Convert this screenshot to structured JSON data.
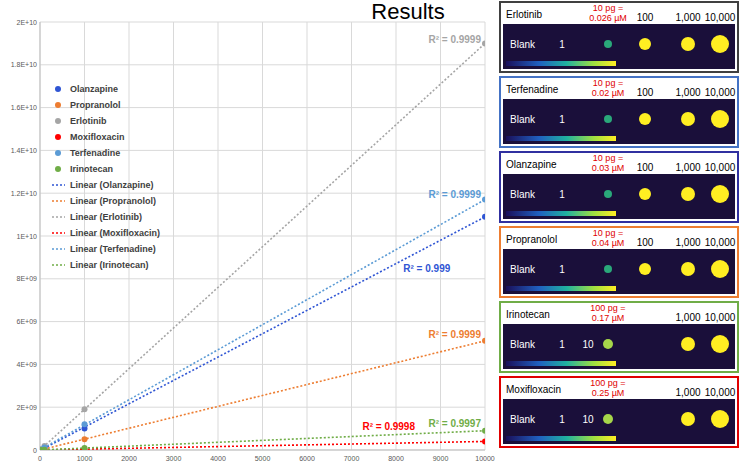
{
  "title": "Results",
  "chart_data": {
    "type": "scatter",
    "x": [
      1,
      10,
      100,
      1000,
      10000
    ],
    "xlim": [
      0,
      10000
    ],
    "xticks": [
      0,
      1000,
      2000,
      3000,
      4000,
      5000,
      6000,
      7000,
      8000,
      9000,
      10000
    ],
    "ylim": [
      0,
      20000000000
    ],
    "yticks": [
      0,
      {
        "value": 2000000000,
        "label": "2E+09"
      },
      {
        "value": 4000000000,
        "label": "4E+09"
      },
      {
        "value": 6000000000,
        "label": "6E+09"
      },
      {
        "value": 8000000000,
        "label": "8E+09"
      },
      {
        "value": 10000000000,
        "label": "1E+10"
      },
      {
        "value": 12000000000,
        "label": "1.2E+10"
      },
      {
        "value": 14000000000,
        "label": "1.4E+10"
      },
      {
        "value": 16000000000,
        "label": "1.6E+10"
      },
      {
        "value": 18000000000,
        "label": "1.8E+10"
      },
      {
        "value": 20000000000,
        "label": "2E+10"
      }
    ],
    "grid": true,
    "legend": "upper left",
    "series": [
      {
        "name": "Olanzapine",
        "trendline_name": "Linear (Olanzapine)",
        "annotation": "R² = 0.999",
        "color": "#2f55d4",
        "marker": "circle",
        "line_style": "dotted",
        "values": [
          1000000,
          10000000,
          100000000,
          1000000000,
          10900000000
        ]
      },
      {
        "name": "Propranolol",
        "trendline_name": "Linear (Propranolol)",
        "annotation": "R² = 0.9999",
        "color": "#ed7d31",
        "marker": "circle",
        "line_style": "dotted",
        "values": [
          500000,
          5000000,
          50000000,
          500000000,
          5100000000
        ]
      },
      {
        "name": "Erlotinib",
        "trendline_name": "Linear (Erlotinib)",
        "annotation": "R² = 0.9999",
        "color": "#a5a5a5",
        "marker": "circle",
        "line_style": "dotted",
        "values": [
          2000000,
          19000000,
          190000000,
          1900000000,
          19000000000
        ]
      },
      {
        "name": "Moxifloxacin",
        "trendline_name": "Linear (Moxifloxacin)",
        "annotation": "R² = 0.9998",
        "color": "#ff0000",
        "marker": "circle",
        "line_style": "dotted",
        "values": [
          0,
          400000,
          4000000,
          40000000,
          400000000
        ]
      },
      {
        "name": "Terfenadine",
        "trendline_name": "Linear (Terfenadine)",
        "annotation": "R² = 0.9999",
        "color": "#5b9bd5",
        "marker": "circle",
        "line_style": "dotted",
        "values": [
          1000000,
          12000000,
          120000000,
          1200000000,
          11700000000
        ]
      },
      {
        "name": "Irinotecan",
        "trendline_name": "Linear (Irinotecan)",
        "annotation": "R² = 0.9997",
        "color": "#70ad47",
        "marker": "circle",
        "line_style": "dotted",
        "values": [
          0,
          1000000,
          9000000,
          90000000,
          900000000
        ]
      }
    ]
  },
  "panels": [
    {
      "name": "Erlotinib",
      "color": "#404040",
      "note": [
        "10 pg =",
        "0.026 µM"
      ],
      "top_labels": [
        "100",
        "1,000",
        "10,000"
      ],
      "image_labels": [
        "Blank",
        "1"
      ]
    },
    {
      "name": "Terfenadine",
      "color": "#4472c4",
      "note": [
        "10 pg =",
        "0.02 µM"
      ],
      "top_labels": [
        "100",
        "1,000",
        "10,000"
      ],
      "image_labels": [
        "Blank",
        "1"
      ]
    },
    {
      "name": "Olanzapine",
      "color": "#3030a0",
      "note": [
        "10 pg =",
        "0.03 µM"
      ],
      "top_labels": [
        "100",
        "1,000",
        "10,000"
      ],
      "image_labels": [
        "Blank",
        "1"
      ]
    },
    {
      "name": "Propranolol",
      "color": "#ed7d31",
      "note": [
        "10 pg =",
        "0.04 µM"
      ],
      "top_labels": [
        "100",
        "1,000",
        "10,000"
      ],
      "image_labels": [
        "Blank",
        "1"
      ]
    },
    {
      "name": "Irinotecan",
      "color": "#70ad47",
      "note": [
        "100 pg =",
        "0.17 µM"
      ],
      "top_labels": [
        "1,000",
        "10,000"
      ],
      "image_labels": [
        "Blank",
        "1",
        "10"
      ]
    },
    {
      "name": "Moxifloxacin",
      "color": "#e00000",
      "note": [
        "100 pg =",
        "0.25 µM"
      ],
      "top_labels": [
        "1,000",
        "10,000"
      ],
      "image_labels": [
        "Blank",
        "1",
        "10"
      ]
    }
  ]
}
